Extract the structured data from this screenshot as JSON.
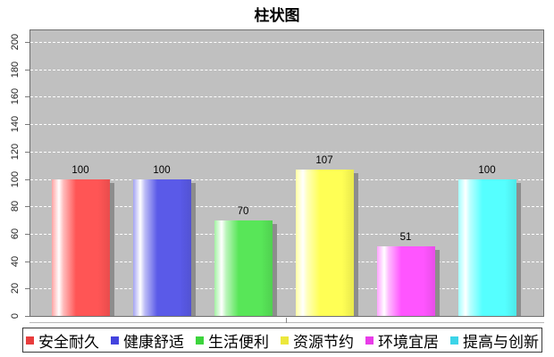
{
  "chart_data": {
    "type": "bar",
    "title": "柱状图",
    "categories": [
      "安全耐久",
      "健康舒适",
      "生活便利",
      "资源节约",
      "环境宜居",
      "提高与创新"
    ],
    "values": [
      100,
      100,
      70,
      107,
      51,
      100
    ],
    "bar_colors": [
      "#ff5555",
      "#5a5ae8",
      "#58e658",
      "#ffff55",
      "#ff55ff",
      "#55ffff"
    ],
    "legend_colors": [
      "#e83c3c",
      "#4343de",
      "#3cd43c",
      "#ece73c",
      "#e83ce8",
      "#3cd4e8"
    ],
    "ylim": [
      0,
      200
    ],
    "y_ticks": [
      0,
      20,
      40,
      60,
      80,
      100,
      120,
      140,
      160,
      180,
      200
    ],
    "grid": "horizontal-white-dashed",
    "data_labels": true,
    "legend_position": "bottom",
    "plot_background": "#c0c0c0",
    "shadow_color": "#8d8d8d"
  }
}
